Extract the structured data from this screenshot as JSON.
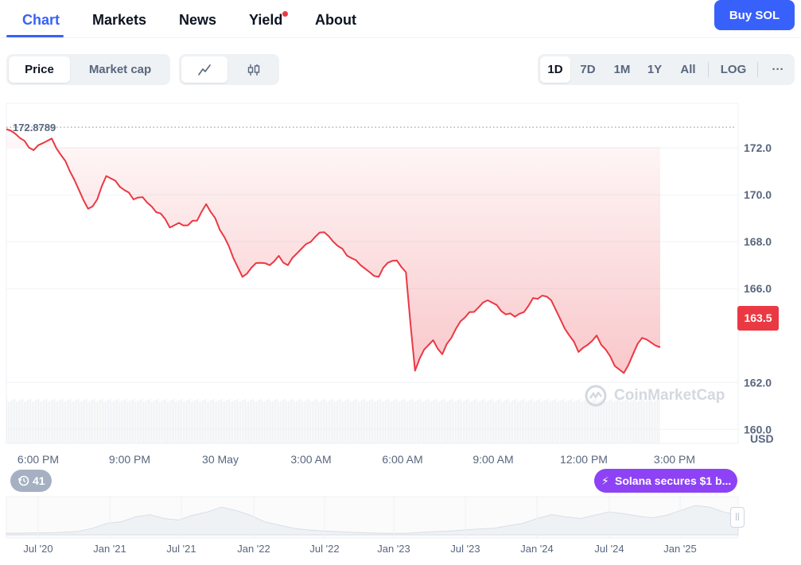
{
  "nav": {
    "tabs": [
      {
        "label": "Chart",
        "active": true
      },
      {
        "label": "Markets"
      },
      {
        "label": "News"
      },
      {
        "label": "Yield",
        "badge_dot": true
      },
      {
        "label": "About"
      }
    ],
    "buy_label": "Buy SOL"
  },
  "toolbar": {
    "metric_tabs": [
      {
        "label": "Price",
        "active": true
      },
      {
        "label": "Market cap"
      }
    ],
    "chart_type_icons": [
      "line-chart-icon",
      "candlestick-icon"
    ],
    "ranges": [
      {
        "label": "1D",
        "active": true
      },
      {
        "label": "7D"
      },
      {
        "label": "1M"
      },
      {
        "label": "1Y"
      },
      {
        "label": "All"
      }
    ],
    "log_label": "LOG",
    "more_label": "···"
  },
  "chart_data": {
    "type": "area",
    "ylabel": "USD",
    "yticks": [
      "172.0",
      "170.0",
      "168.0",
      "166.0",
      "162.0",
      "160.0"
    ],
    "ylim": [
      159.4,
      173.9
    ],
    "reference_line": {
      "label": "172.8789",
      "value": 172.8789
    },
    "current_price": "163.5",
    "xticks": [
      "6:00 PM",
      "9:00 PM",
      "30 May",
      "3:00 AM",
      "6:00 AM",
      "9:00 AM",
      "12:00 PM",
      "3:00 PM"
    ],
    "prices": [
      172.8,
      172.6,
      172.3,
      171.9,
      172.2,
      172.4,
      171.7,
      171.0,
      170.2,
      169.4,
      169.8,
      170.8,
      170.6,
      170.2,
      169.8,
      169.9,
      169.5,
      169.2,
      168.6,
      168.8,
      168.7,
      168.9,
      169.6,
      169.0,
      168.2,
      167.3,
      166.5,
      166.9,
      167.1,
      167.0,
      167.4,
      167.0,
      167.5,
      167.9,
      168.2,
      168.4,
      168.0,
      167.7,
      167.3,
      167.0,
      166.7,
      166.5,
      167.1,
      167.2,
      166.7,
      162.5,
      163.4,
      163.8,
      163.2,
      163.9,
      164.6,
      165.0,
      165.2,
      165.5,
      165.3,
      164.9,
      164.8,
      165.0,
      165.6,
      165.7,
      165.5,
      164.7,
      164.0,
      163.3,
      163.6,
      164.0,
      163.4,
      162.7,
      162.4,
      163.2,
      163.9,
      163.7,
      163.5
    ],
    "volume_label": "",
    "navigator": {
      "xticks": [
        "Jul '20",
        "Jan '21",
        "Jul '21",
        "Jan '22",
        "Jul '22",
        "Jan '23",
        "Jul '23",
        "Jan '24",
        "Jul '24",
        "Jan '25"
      ]
    },
    "history_count": "41",
    "news_tag": "Solana secures $1 b..."
  },
  "watermark": "CoinMarketCap",
  "colors": {
    "accent": "#3861fb",
    "down": "#ea3943",
    "news": "#8d43f5"
  }
}
